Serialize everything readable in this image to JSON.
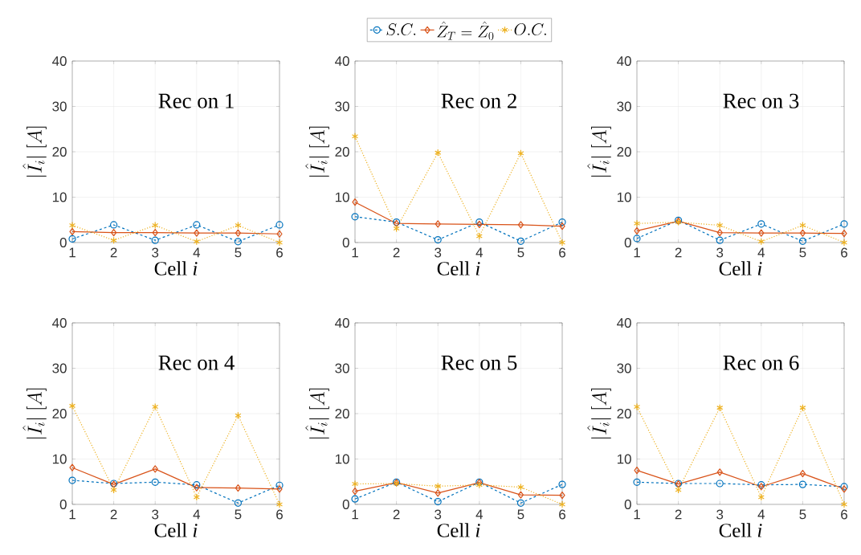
{
  "chart_data": [
    {
      "type": "line",
      "annotations": [
        "Rec on 1"
      ],
      "xlabel": "Cell *i*",
      "ylabel": "|\\hat{I}_i|\\ [A]",
      "x": [
        1,
        2,
        3,
        4,
        5,
        6
      ],
      "xlim": [
        1,
        6
      ],
      "xticks": [
        1,
        2,
        3,
        4,
        5,
        6
      ],
      "ylim": [
        0,
        40
      ],
      "yticks": [
        0,
        10,
        20,
        30,
        40
      ],
      "grid": true,
      "legend": "top",
      "series": [
        {
          "name": "S.C.",
          "color": "#0072bd",
          "line_style": "dashed",
          "marker": "circle",
          "values": [
            0.8,
            3.9,
            0.5,
            3.9,
            0.2,
            3.9
          ]
        },
        {
          "name": "\\hat{Z}_T = \\hat{Z}_0",
          "color": "#d95319",
          "line_style": "solid",
          "marker": "diamond",
          "values": [
            2.4,
            2.2,
            2.2,
            2.1,
            2.1,
            1.9
          ]
        },
        {
          "name": "O.C.",
          "color": "#edb120",
          "line_style": "dotted",
          "marker": "cross",
          "values": [
            3.8,
            0.5,
            3.8,
            0.2,
            3.8,
            0
          ]
        }
      ]
    },
    {
      "type": "line",
      "annotations": [
        "Rec on 2"
      ],
      "xlabel": "Cell *i*",
      "ylabel": "|\\hat{I}_i|\\ [A]",
      "x": [
        1,
        2,
        3,
        4,
        5,
        6
      ],
      "xlim": [
        1,
        6
      ],
      "xticks": [
        1,
        2,
        3,
        4,
        5,
        6
      ],
      "ylim": [
        0,
        40
      ],
      "yticks": [
        0,
        10,
        20,
        30,
        40
      ],
      "grid": true,
      "series": [
        {
          "color": "#0072bd",
          "line_style": "dashed",
          "marker": "circle",
          "values": [
            5.7,
            4.5,
            0.6,
            4.5,
            0.3,
            4.5
          ]
        },
        {
          "color": "#d95319",
          "line_style": "solid",
          "marker": "diamond",
          "values": [
            8.9,
            4.2,
            4.1,
            4.0,
            3.9,
            3.6
          ]
        },
        {
          "color": "#edb120",
          "line_style": "dotted",
          "marker": "cross",
          "values": [
            23.4,
            3.1,
            19.8,
            1.4,
            19.7,
            0
          ]
        }
      ]
    },
    {
      "type": "line",
      "annotations": [
        "Rec on 3"
      ],
      "xlabel": "Cell *i*",
      "ylabel": "|\\hat{I}_i|\\ [A]",
      "x": [
        1,
        2,
        3,
        4,
        5,
        6
      ],
      "xlim": [
        1,
        6
      ],
      "xticks": [
        1,
        2,
        3,
        4,
        5,
        6
      ],
      "ylim": [
        0,
        40
      ],
      "yticks": [
        0,
        10,
        20,
        30,
        40
      ],
      "grid": true,
      "series": [
        {
          "color": "#0072bd",
          "line_style": "dashed",
          "marker": "circle",
          "values": [
            0.9,
            4.9,
            0.5,
            4.1,
            0.3,
            4.1
          ]
        },
        {
          "color": "#d95319",
          "line_style": "solid",
          "marker": "diamond",
          "values": [
            2.6,
            4.7,
            2.2,
            2.1,
            2.1,
            2.0
          ]
        },
        {
          "color": "#edb120",
          "line_style": "dotted",
          "marker": "cross",
          "values": [
            4.2,
            4.5,
            3.8,
            0.2,
            3.8,
            0
          ]
        }
      ]
    },
    {
      "type": "line",
      "annotations": [
        "Rec on 4"
      ],
      "xlabel": "Cell *i*",
      "ylabel": "|\\hat{I}_i|\\ [A]",
      "x": [
        1,
        2,
        3,
        4,
        5,
        6
      ],
      "xlim": [
        1,
        6
      ],
      "xticks": [
        1,
        2,
        3,
        4,
        5,
        6
      ],
      "ylim": [
        0,
        40
      ],
      "yticks": [
        0,
        10,
        20,
        30,
        40
      ],
      "grid": true,
      "series": [
        {
          "color": "#0072bd",
          "line_style": "dashed",
          "marker": "circle",
          "values": [
            5.3,
            4.6,
            4.9,
            4.3,
            0.3,
            4.2
          ]
        },
        {
          "color": "#d95319",
          "line_style": "solid",
          "marker": "diamond",
          "values": [
            8.1,
            4.4,
            7.8,
            3.7,
            3.6,
            3.4
          ]
        },
        {
          "color": "#edb120",
          "line_style": "dotted",
          "marker": "cross",
          "values": [
            21.7,
            3.2,
            21.5,
            1.6,
            19.6,
            0
          ]
        }
      ]
    },
    {
      "type": "line",
      "annotations": [
        "Rec on 5"
      ],
      "xlabel": "Cell *i*",
      "ylabel": "|\\hat{I}_i|\\ [A]",
      "x": [
        1,
        2,
        3,
        4,
        5,
        6
      ],
      "xlim": [
        1,
        6
      ],
      "xticks": [
        1,
        2,
        3,
        4,
        5,
        6
      ],
      "ylim": [
        0,
        40
      ],
      "yticks": [
        0,
        10,
        20,
        30,
        40
      ],
      "grid": true,
      "series": [
        {
          "color": "#0072bd",
          "line_style": "dashed",
          "marker": "circle",
          "values": [
            1.2,
            4.9,
            0.6,
            4.9,
            0.3,
            4.4
          ]
        },
        {
          "color": "#d95319",
          "line_style": "solid",
          "marker": "diamond",
          "values": [
            2.9,
            4.8,
            2.5,
            4.8,
            2.1,
            2.0
          ]
        },
        {
          "color": "#edb120",
          "line_style": "dotted",
          "marker": "cross",
          "values": [
            4.5,
            4.6,
            4.0,
            4.3,
            3.8,
            0
          ]
        }
      ]
    },
    {
      "type": "line",
      "annotations": [
        "Rec on 6"
      ],
      "xlabel": "Cell *i*",
      "ylabel": "|\\hat{I}_i|\\ [A]",
      "x": [
        1,
        2,
        3,
        4,
        5,
        6
      ],
      "xlim": [
        1,
        6
      ],
      "xticks": [
        1,
        2,
        3,
        4,
        5,
        6
      ],
      "ylim": [
        0,
        40
      ],
      "yticks": [
        0,
        10,
        20,
        30,
        40
      ],
      "grid": true,
      "series": [
        {
          "color": "#0072bd",
          "line_style": "dashed",
          "marker": "circle",
          "values": [
            4.9,
            4.6,
            4.6,
            4.3,
            4.4,
            3.9
          ]
        },
        {
          "color": "#d95319",
          "line_style": "solid",
          "marker": "diamond",
          "values": [
            7.5,
            4.5,
            7.1,
            3.9,
            6.8,
            3.4
          ]
        },
        {
          "color": "#edb120",
          "line_style": "dotted",
          "marker": "cross",
          "values": [
            21.5,
            3.2,
            21.3,
            1.6,
            21.3,
            0
          ]
        }
      ]
    }
  ]
}
